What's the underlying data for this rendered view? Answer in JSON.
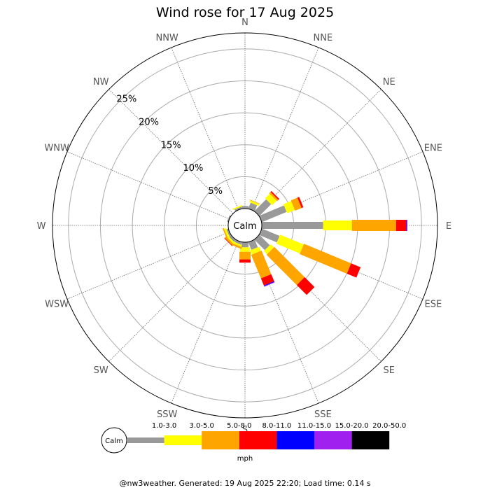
{
  "chart_data": {
    "type": "wind-rose",
    "title": "Wind rose for 17 Aug 2025",
    "center_label": "Calm",
    "radial_ticks": [
      "5%",
      "10%",
      "15%",
      "20%",
      "25%"
    ],
    "radial_tick_values": [
      5,
      10,
      15,
      20,
      25
    ],
    "r_max": 27.5,
    "directions": [
      "N",
      "NNE",
      "NE",
      "ENE",
      "E",
      "ESE",
      "SE",
      "SSE",
      "S",
      "SSW",
      "SW",
      "WSW",
      "W",
      "WNW",
      "NW",
      "NNW"
    ],
    "bins": [
      {
        "label": "1.0-3.0",
        "color": "#999999"
      },
      {
        "label": "3.0-5.0",
        "color": "#ffff00"
      },
      {
        "label": "5.0-8.0",
        "color": "#ffa500"
      },
      {
        "label": "8.0-11.0",
        "color": "#ff0000"
      },
      {
        "label": "11.0-15.0",
        "color": "#0000ff"
      },
      {
        "label": "15.0-20.0",
        "color": "#a020f0"
      },
      {
        "label": "20.0-50.0",
        "color": "#000000"
      }
    ],
    "unit": "mph",
    "series": [
      {
        "dir": "N",
        "values": [
          0.4,
          0,
          0,
          0,
          0,
          0,
          0
        ]
      },
      {
        "dir": "NNE",
        "values": [
          1.0,
          0.3,
          0.1,
          0,
          0,
          0,
          0
        ]
      },
      {
        "dir": "NE",
        "values": [
          2.6,
          1.0,
          0.3,
          0.2,
          0,
          0,
          0
        ]
      },
      {
        "dir": "ENE",
        "values": [
          4.2,
          1.3,
          1.1,
          0.3,
          0,
          0,
          0
        ]
      },
      {
        "dir": "E",
        "values": [
          9.6,
          4.5,
          6.9,
          1.6,
          0.1,
          0.1,
          0
        ]
      },
      {
        "dir": "ESE",
        "values": [
          3.0,
          4.0,
          8.0,
          1.6,
          0,
          0,
          0
        ]
      },
      {
        "dir": "SE",
        "values": [
          2.3,
          0.7,
          6.7,
          2.2,
          0,
          0,
          0
        ]
      },
      {
        "dir": "SSE",
        "values": [
          1.3,
          0.7,
          4.0,
          1.2,
          0.1,
          0.1,
          0
        ]
      },
      {
        "dir": "S",
        "values": [
          0.8,
          0.7,
          1.2,
          0.5,
          0,
          0,
          0
        ]
      },
      {
        "dir": "SSW",
        "values": [
          0.4,
          0.3,
          0.3,
          0,
          0,
          0,
          0
        ]
      },
      {
        "dir": "SW",
        "values": [
          0.4,
          0.3,
          0.3,
          0.1,
          0,
          0,
          0
        ]
      },
      {
        "dir": "WSW",
        "values": [
          0.3,
          0.3,
          0.2,
          0,
          0,
          0,
          0
        ]
      },
      {
        "dir": "W",
        "values": [
          0,
          0,
          0,
          0,
          0,
          0,
          0
        ]
      },
      {
        "dir": "WNW",
        "values": [
          0.2,
          0,
          0,
          0,
          0,
          0,
          0
        ]
      },
      {
        "dir": "NW",
        "values": [
          0,
          0,
          0,
          0,
          0,
          0,
          0
        ]
      },
      {
        "dir": "NNW",
        "values": [
          0.3,
          0.2,
          0,
          0,
          0,
          0,
          0
        ]
      }
    ]
  },
  "footer": "@nw3weather. Generated: 19 Aug 2025 22:20; Load time: 0.14 s"
}
